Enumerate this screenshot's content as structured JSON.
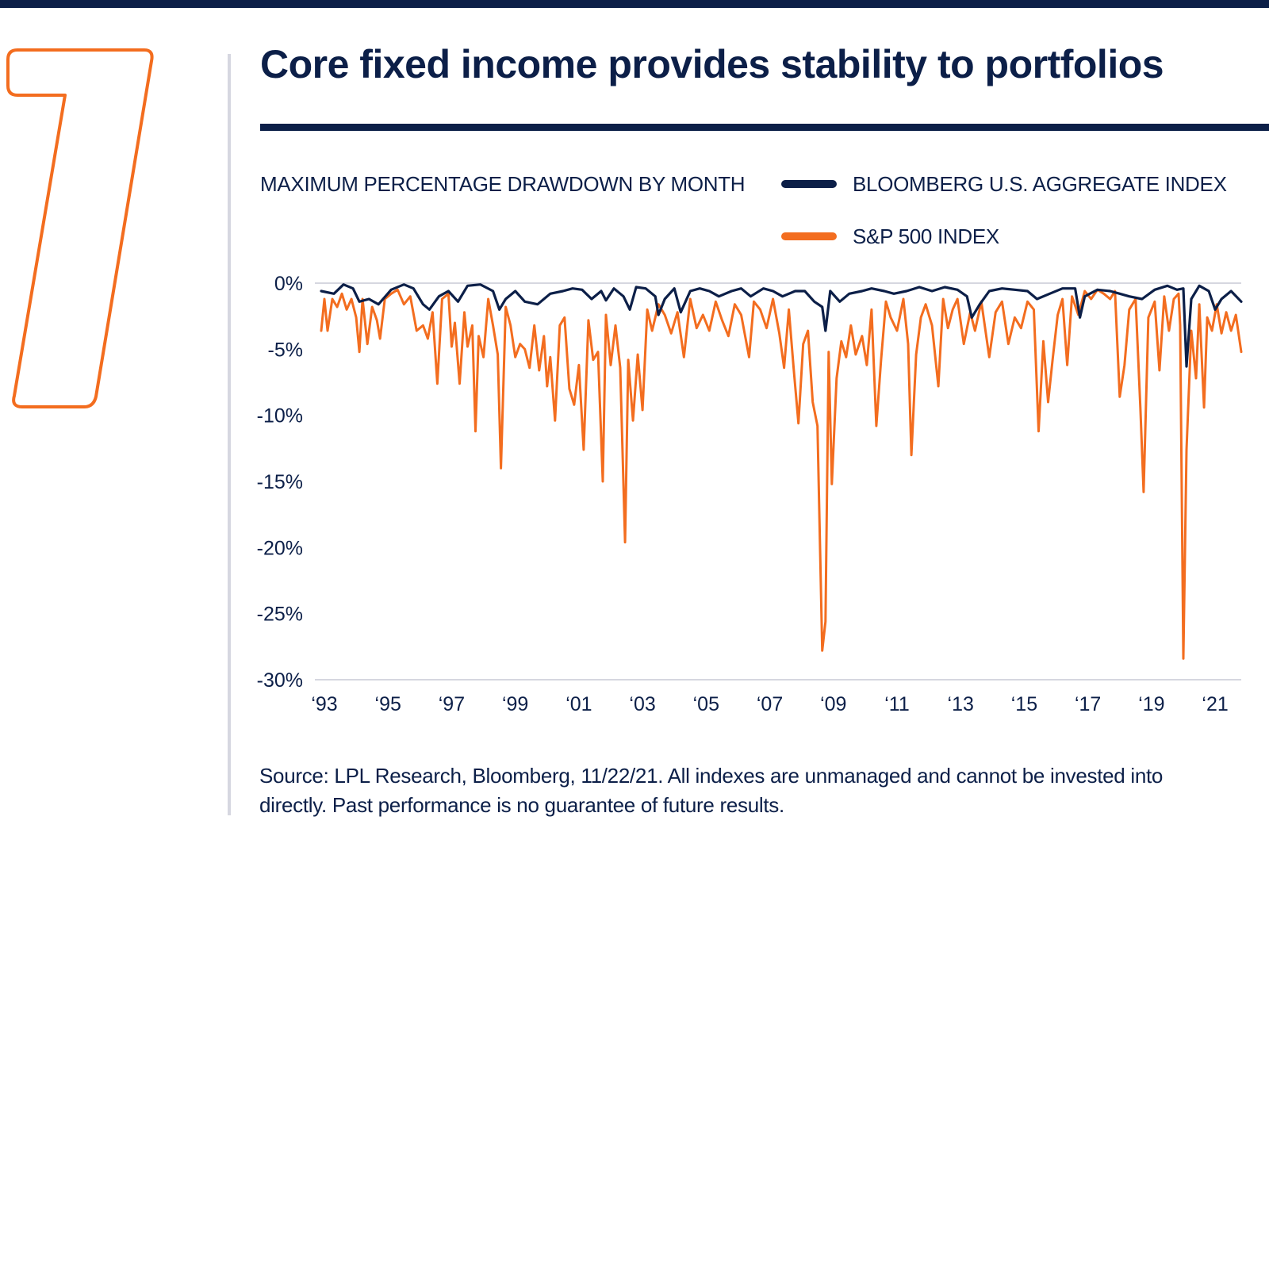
{
  "colors": {
    "navy": "#0c1f48",
    "orange": "#f36d1f",
    "axis_gray": "#d6d7e0"
  },
  "badge": {
    "number": "7"
  },
  "header": {
    "title": "Core fixed income provides stability to portfolios"
  },
  "source_note": "Source: LPL Research, Bloomberg, 11/22/21. All indexes are unmanaged and cannot be invested into directly. Past performance is no guarantee of future results.",
  "chart_data": {
    "type": "line",
    "title": "MAXIMUM PERCENTAGE DRAWDOWN BY MONTH",
    "xlabel": "",
    "ylabel": "",
    "ylim": [
      -30,
      0
    ],
    "xlim": [
      1993.0,
      2021.92
    ],
    "yticks": [
      "0%",
      "-5%",
      "-10%",
      "-15%",
      "-20%",
      "-25%",
      "-30%"
    ],
    "yticks_values": [
      0,
      -5,
      -10,
      -15,
      -20,
      -25,
      -30
    ],
    "xticks": [
      "‘93",
      "‘95",
      "‘97",
      "‘99",
      "‘01",
      "‘03",
      "‘05",
      "‘07",
      "‘09",
      "‘11",
      "‘13",
      "‘15",
      "‘17",
      "‘19",
      "‘21"
    ],
    "xticks_values": [
      1993,
      1995,
      1997,
      1999,
      2001,
      2003,
      2005,
      2007,
      2009,
      2011,
      2013,
      2015,
      2017,
      2019,
      2021
    ],
    "grid": false,
    "legend_position": "top-right",
    "series": [
      {
        "name": "BLOOMBERG U.S. AGGREGATE INDEX",
        "color": "#0c1f48",
        "points": [
          [
            1993.0,
            -0.6
          ],
          [
            1993.4,
            -0.8
          ],
          [
            1993.7,
            -0.1
          ],
          [
            1994.0,
            -0.4
          ],
          [
            1994.2,
            -1.4
          ],
          [
            1994.5,
            -1.2
          ],
          [
            1994.8,
            -1.6
          ],
          [
            1995.2,
            -0.5
          ],
          [
            1995.6,
            -0.1
          ],
          [
            1995.9,
            -0.4
          ],
          [
            1996.2,
            -1.6
          ],
          [
            1996.4,
            -2.0
          ],
          [
            1996.7,
            -1.0
          ],
          [
            1997.0,
            -0.6
          ],
          [
            1997.3,
            -1.4
          ],
          [
            1997.6,
            -0.2
          ],
          [
            1998.0,
            -0.1
          ],
          [
            1998.4,
            -0.6
          ],
          [
            1998.6,
            -2.0
          ],
          [
            1998.8,
            -1.2
          ],
          [
            1999.1,
            -0.6
          ],
          [
            1999.4,
            -1.4
          ],
          [
            1999.8,
            -1.6
          ],
          [
            2000.2,
            -0.8
          ],
          [
            2000.6,
            -0.6
          ],
          [
            2000.9,
            -0.4
          ],
          [
            2001.2,
            -0.5
          ],
          [
            2001.5,
            -1.2
          ],
          [
            2001.8,
            -0.6
          ],
          [
            2001.95,
            -1.3
          ],
          [
            2002.2,
            -0.4
          ],
          [
            2002.5,
            -1.0
          ],
          [
            2002.7,
            -2.0
          ],
          [
            2002.9,
            -0.3
          ],
          [
            2003.2,
            -0.4
          ],
          [
            2003.5,
            -1.0
          ],
          [
            2003.6,
            -2.4
          ],
          [
            2003.8,
            -1.2
          ],
          [
            2004.1,
            -0.4
          ],
          [
            2004.3,
            -2.2
          ],
          [
            2004.6,
            -0.6
          ],
          [
            2004.9,
            -0.4
          ],
          [
            2005.2,
            -0.6
          ],
          [
            2005.5,
            -1.0
          ],
          [
            2005.9,
            -0.6
          ],
          [
            2006.2,
            -0.4
          ],
          [
            2006.5,
            -1.0
          ],
          [
            2006.9,
            -0.4
          ],
          [
            2007.2,
            -0.6
          ],
          [
            2007.5,
            -1.0
          ],
          [
            2007.9,
            -0.6
          ],
          [
            2008.2,
            -0.6
          ],
          [
            2008.5,
            -1.4
          ],
          [
            2008.75,
            -1.8
          ],
          [
            2008.85,
            -3.6
          ],
          [
            2009.0,
            -0.6
          ],
          [
            2009.3,
            -1.4
          ],
          [
            2009.6,
            -0.8
          ],
          [
            2010.0,
            -0.6
          ],
          [
            2010.3,
            -0.4
          ],
          [
            2010.7,
            -0.6
          ],
          [
            2011.0,
            -0.8
          ],
          [
            2011.4,
            -0.6
          ],
          [
            2011.8,
            -0.3
          ],
          [
            2012.2,
            -0.6
          ],
          [
            2012.6,
            -0.3
          ],
          [
            2013.0,
            -0.5
          ],
          [
            2013.3,
            -1.0
          ],
          [
            2013.45,
            -2.6
          ],
          [
            2013.7,
            -1.6
          ],
          [
            2014.0,
            -0.6
          ],
          [
            2014.4,
            -0.4
          ],
          [
            2014.8,
            -0.5
          ],
          [
            2015.2,
            -0.6
          ],
          [
            2015.5,
            -1.2
          ],
          [
            2015.9,
            -0.8
          ],
          [
            2016.3,
            -0.4
          ],
          [
            2016.7,
            -0.4
          ],
          [
            2016.85,
            -2.6
          ],
          [
            2017.0,
            -1.0
          ],
          [
            2017.4,
            -0.5
          ],
          [
            2017.8,
            -0.6
          ],
          [
            2018.1,
            -0.8
          ],
          [
            2018.4,
            -1.0
          ],
          [
            2018.8,
            -1.2
          ],
          [
            2019.2,
            -0.5
          ],
          [
            2019.6,
            -0.2
          ],
          [
            2019.9,
            -0.5
          ],
          [
            2020.1,
            -0.4
          ],
          [
            2020.2,
            -6.3
          ],
          [
            2020.35,
            -1.2
          ],
          [
            2020.6,
            -0.2
          ],
          [
            2020.9,
            -0.6
          ],
          [
            2021.1,
            -2.0
          ],
          [
            2021.3,
            -1.2
          ],
          [
            2021.6,
            -0.6
          ],
          [
            2021.92,
            -1.4
          ]
        ]
      },
      {
        "name": "S&P 500 INDEX",
        "color": "#f36d1f",
        "points": [
          [
            1993.0,
            -3.6
          ],
          [
            1993.1,
            -1.2
          ],
          [
            1993.2,
            -3.6
          ],
          [
            1993.35,
            -1.2
          ],
          [
            1993.5,
            -1.8
          ],
          [
            1993.65,
            -0.8
          ],
          [
            1993.8,
            -2.0
          ],
          [
            1993.95,
            -1.2
          ],
          [
            1994.1,
            -2.6
          ],
          [
            1994.2,
            -5.2
          ],
          [
            1994.3,
            -1.2
          ],
          [
            1994.45,
            -4.6
          ],
          [
            1994.6,
            -1.8
          ],
          [
            1994.75,
            -2.8
          ],
          [
            1994.85,
            -4.2
          ],
          [
            1995.0,
            -1.2
          ],
          [
            1995.2,
            -0.8
          ],
          [
            1995.4,
            -0.5
          ],
          [
            1995.6,
            -1.6
          ],
          [
            1995.8,
            -1.0
          ],
          [
            1996.0,
            -3.6
          ],
          [
            1996.2,
            -3.2
          ],
          [
            1996.35,
            -4.2
          ],
          [
            1996.5,
            -2.2
          ],
          [
            1996.65,
            -7.6
          ],
          [
            1996.8,
            -1.2
          ],
          [
            1997.0,
            -0.8
          ],
          [
            1997.1,
            -4.8
          ],
          [
            1997.2,
            -3.0
          ],
          [
            1997.35,
            -7.6
          ],
          [
            1997.5,
            -2.2
          ],
          [
            1997.6,
            -4.8
          ],
          [
            1997.75,
            -3.2
          ],
          [
            1997.85,
            -11.2
          ],
          [
            1997.95,
            -4.0
          ],
          [
            1998.1,
            -5.6
          ],
          [
            1998.25,
            -1.2
          ],
          [
            1998.4,
            -3.2
          ],
          [
            1998.55,
            -5.4
          ],
          [
            1998.65,
            -14.0
          ],
          [
            1998.8,
            -1.8
          ],
          [
            1998.95,
            -3.2
          ],
          [
            1999.1,
            -5.6
          ],
          [
            1999.25,
            -4.6
          ],
          [
            1999.4,
            -5.0
          ],
          [
            1999.55,
            -6.4
          ],
          [
            1999.7,
            -3.2
          ],
          [
            1999.85,
            -6.6
          ],
          [
            2000.0,
            -4.0
          ],
          [
            2000.1,
            -7.8
          ],
          [
            2000.2,
            -5.6
          ],
          [
            2000.35,
            -10.4
          ],
          [
            2000.5,
            -3.2
          ],
          [
            2000.65,
            -2.6
          ],
          [
            2000.8,
            -8.0
          ],
          [
            2000.95,
            -9.2
          ],
          [
            2001.1,
            -6.2
          ],
          [
            2001.25,
            -12.6
          ],
          [
            2001.4,
            -2.8
          ],
          [
            2001.55,
            -5.8
          ],
          [
            2001.7,
            -5.2
          ],
          [
            2001.85,
            -15.0
          ],
          [
            2001.95,
            -2.4
          ],
          [
            2002.1,
            -6.2
          ],
          [
            2002.25,
            -3.2
          ],
          [
            2002.4,
            -6.4
          ],
          [
            2002.55,
            -19.6
          ],
          [
            2002.65,
            -5.8
          ],
          [
            2002.8,
            -10.4
          ],
          [
            2002.95,
            -5.4
          ],
          [
            2003.1,
            -9.6
          ],
          [
            2003.25,
            -2.0
          ],
          [
            2003.4,
            -3.6
          ],
          [
            2003.6,
            -1.6
          ],
          [
            2003.8,
            -2.4
          ],
          [
            2004.0,
            -3.8
          ],
          [
            2004.2,
            -2.2
          ],
          [
            2004.4,
            -5.6
          ],
          [
            2004.6,
            -1.2
          ],
          [
            2004.8,
            -3.4
          ],
          [
            2005.0,
            -2.4
          ],
          [
            2005.2,
            -3.6
          ],
          [
            2005.4,
            -1.4
          ],
          [
            2005.6,
            -2.8
          ],
          [
            2005.8,
            -4.0
          ],
          [
            2006.0,
            -1.6
          ],
          [
            2006.2,
            -2.4
          ],
          [
            2006.45,
            -5.6
          ],
          [
            2006.6,
            -1.4
          ],
          [
            2006.8,
            -2.0
          ],
          [
            2007.0,
            -3.4
          ],
          [
            2007.2,
            -1.2
          ],
          [
            2007.4,
            -3.8
          ],
          [
            2007.55,
            -6.4
          ],
          [
            2007.7,
            -2.0
          ],
          [
            2007.85,
            -6.4
          ],
          [
            2008.0,
            -10.6
          ],
          [
            2008.15,
            -4.6
          ],
          [
            2008.3,
            -3.6
          ],
          [
            2008.45,
            -9.0
          ],
          [
            2008.6,
            -10.8
          ],
          [
            2008.75,
            -27.8
          ],
          [
            2008.85,
            -25.6
          ],
          [
            2008.95,
            -5.2
          ],
          [
            2009.05,
            -15.2
          ],
          [
            2009.2,
            -7.2
          ],
          [
            2009.35,
            -4.4
          ],
          [
            2009.5,
            -5.6
          ],
          [
            2009.65,
            -3.2
          ],
          [
            2009.8,
            -5.4
          ],
          [
            2010.0,
            -4.0
          ],
          [
            2010.15,
            -6.2
          ],
          [
            2010.3,
            -2.0
          ],
          [
            2010.45,
            -10.8
          ],
          [
            2010.6,
            -5.8
          ],
          [
            2010.75,
            -1.4
          ],
          [
            2010.9,
            -2.6
          ],
          [
            2011.1,
            -3.6
          ],
          [
            2011.3,
            -1.2
          ],
          [
            2011.45,
            -4.6
          ],
          [
            2011.55,
            -13.0
          ],
          [
            2011.7,
            -5.4
          ],
          [
            2011.85,
            -2.6
          ],
          [
            2012.0,
            -1.6
          ],
          [
            2012.2,
            -3.2
          ],
          [
            2012.4,
            -7.8
          ],
          [
            2012.55,
            -1.2
          ],
          [
            2012.7,
            -3.4
          ],
          [
            2012.85,
            -2.0
          ],
          [
            2013.0,
            -1.2
          ],
          [
            2013.2,
            -4.6
          ],
          [
            2013.4,
            -2.2
          ],
          [
            2013.55,
            -3.6
          ],
          [
            2013.75,
            -1.4
          ],
          [
            2014.0,
            -5.6
          ],
          [
            2014.2,
            -2.2
          ],
          [
            2014.4,
            -1.4
          ],
          [
            2014.6,
            -4.6
          ],
          [
            2014.8,
            -2.6
          ],
          [
            2015.0,
            -3.4
          ],
          [
            2015.2,
            -1.4
          ],
          [
            2015.4,
            -2.0
          ],
          [
            2015.55,
            -11.2
          ],
          [
            2015.7,
            -4.4
          ],
          [
            2015.85,
            -9.0
          ],
          [
            2016.0,
            -5.6
          ],
          [
            2016.15,
            -2.4
          ],
          [
            2016.3,
            -1.2
          ],
          [
            2016.45,
            -6.2
          ],
          [
            2016.6,
            -1.0
          ],
          [
            2016.8,
            -2.4
          ],
          [
            2017.0,
            -0.6
          ],
          [
            2017.2,
            -1.2
          ],
          [
            2017.4,
            -0.5
          ],
          [
            2017.6,
            -0.8
          ],
          [
            2017.8,
            -1.2
          ],
          [
            2017.95,
            -0.6
          ],
          [
            2018.1,
            -8.6
          ],
          [
            2018.25,
            -6.2
          ],
          [
            2018.4,
            -2.0
          ],
          [
            2018.6,
            -1.2
          ],
          [
            2018.75,
            -9.4
          ],
          [
            2018.85,
            -15.8
          ],
          [
            2019.0,
            -2.6
          ],
          [
            2019.2,
            -1.4
          ],
          [
            2019.35,
            -6.6
          ],
          [
            2019.5,
            -1.0
          ],
          [
            2019.65,
            -3.6
          ],
          [
            2019.8,
            -1.2
          ],
          [
            2019.95,
            -0.8
          ],
          [
            2020.0,
            -3.2
          ],
          [
            2020.1,
            -28.4
          ],
          [
            2020.2,
            -12.6
          ],
          [
            2020.35,
            -3.6
          ],
          [
            2020.5,
            -7.2
          ],
          [
            2020.6,
            -1.6
          ],
          [
            2020.75,
            -9.4
          ],
          [
            2020.85,
            -2.6
          ],
          [
            2021.0,
            -3.6
          ],
          [
            2021.15,
            -1.6
          ],
          [
            2021.3,
            -3.8
          ],
          [
            2021.45,
            -2.2
          ],
          [
            2021.6,
            -3.6
          ],
          [
            2021.75,
            -2.4
          ],
          [
            2021.92,
            -5.2
          ]
        ]
      }
    ]
  }
}
